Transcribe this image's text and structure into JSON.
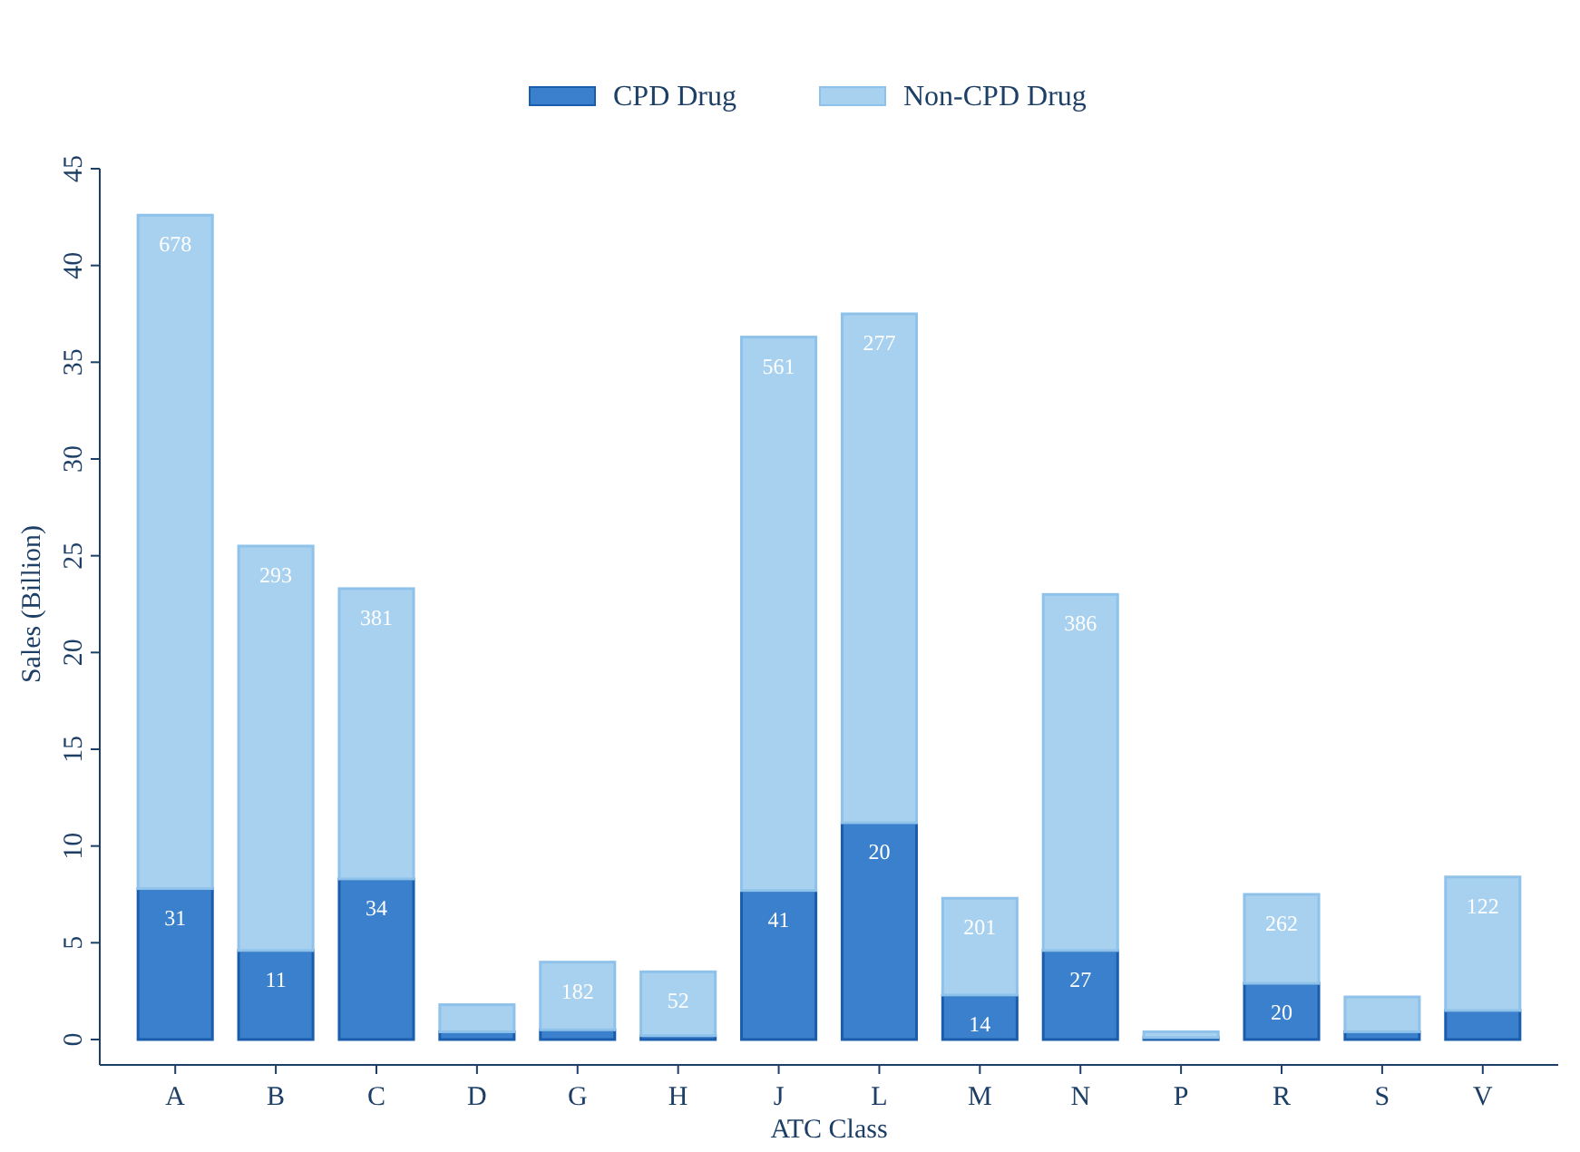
{
  "chart_data": {
    "type": "bar",
    "stacked": true,
    "xlabel": "ATC Class",
    "ylabel": "Sales (Billion)",
    "categories": [
      "A",
      "B",
      "C",
      "D",
      "G",
      "H",
      "J",
      "L",
      "M",
      "N",
      "P",
      "R",
      "S",
      "V"
    ],
    "series": [
      {
        "name": "CPD Drug",
        "color": "#3a80cc",
        "values": [
          7.8,
          4.6,
          8.3,
          0.4,
          0.5,
          0.2,
          7.7,
          11.2,
          2.3,
          4.6,
          0.1,
          2.9,
          0.4,
          1.5
        ]
      },
      {
        "name": "Non-CPD Drug",
        "color": "#a8d1ef",
        "values": [
          34.8,
          20.9,
          15.0,
          1.4,
          3.5,
          3.3,
          28.6,
          26.3,
          5.0,
          18.4,
          0.3,
          4.6,
          1.8,
          6.9
        ]
      }
    ],
    "annotations": [
      {
        "text": "31",
        "x": "A",
        "y": 7.8
      },
      {
        "text": "11",
        "x": "B",
        "y": 4.6
      },
      {
        "text": "34",
        "x": "C",
        "y": 8.3
      },
      {
        "text": "41",
        "x": "J",
        "y": 7.7
      },
      {
        "text": "20",
        "x": "L",
        "y": 11.2
      },
      {
        "text": "14",
        "x": "M",
        "y": 2.3
      },
      {
        "text": "27",
        "x": "N",
        "y": 4.6
      },
      {
        "text": "20",
        "x": "R",
        "y": 2.9
      },
      {
        "text": "678",
        "x": "A",
        "y": 42.6
      },
      {
        "text": "293",
        "x": "B",
        "y": 25.5
      },
      {
        "text": "381",
        "x": "C",
        "y": 23.3
      },
      {
        "text": "182",
        "x": "G",
        "y": 4.0
      },
      {
        "text": "52",
        "x": "H",
        "y": 3.5
      },
      {
        "text": "561",
        "x": "J",
        "y": 36.3
      },
      {
        "text": "277",
        "x": "L",
        "y": 37.5
      },
      {
        "text": "201",
        "x": "M",
        "y": 7.3
      },
      {
        "text": "386",
        "x": "N",
        "y": 23.0
      },
      {
        "text": "262",
        "x": "R",
        "y": 7.5
      },
      {
        "text": "122",
        "x": "V",
        "y": 8.4
      }
    ],
    "ylim": [
      0,
      45
    ],
    "yticks": [
      0,
      5,
      10,
      15,
      20,
      25,
      30,
      35,
      40,
      45
    ],
    "grid": false,
    "legend": "top"
  }
}
